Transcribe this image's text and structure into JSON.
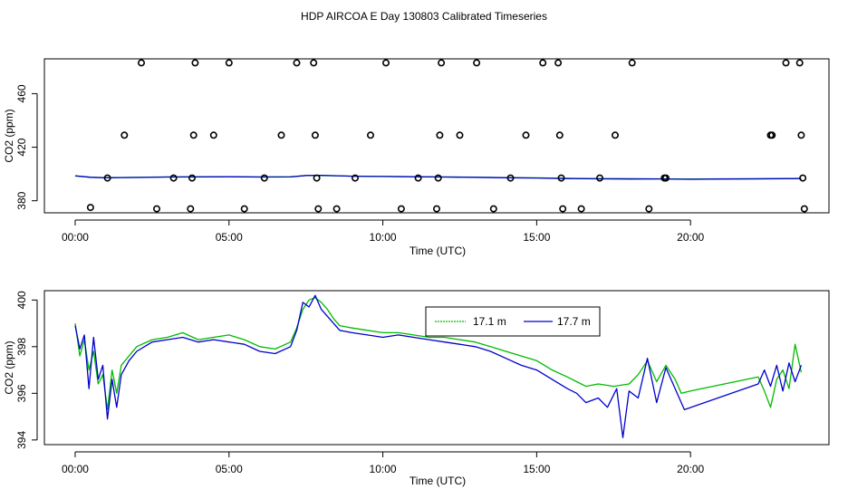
{
  "title": "HDP AIRCOA E  Day 130803  Calibrated Timeseries",
  "colors": {
    "green": "#00bb00",
    "blue": "#0000cc"
  },
  "chart_data": [
    {
      "type": "scatter",
      "xlabel": "Time (UTC)",
      "ylabel": "CO2 (ppm)",
      "xlim": [
        -1.0,
        24.5
      ],
      "ylim": [
        371,
        486
      ],
      "xticks": [
        0,
        5,
        10,
        15,
        20
      ],
      "xtick_labels": [
        "00:00",
        "05:00",
        "10:00",
        "15:00",
        "20:00"
      ],
      "yticks": [
        380,
        420,
        460
      ],
      "ytick_labels": [
        "380",
        "420",
        "460"
      ],
      "calibration_points": {
        "x": [
          0.5,
          1.05,
          1.6,
          2.15,
          2.65,
          3.2,
          3.75,
          3.8,
          3.85,
          3.9,
          4.5,
          5.0,
          5.5,
          6.15,
          6.7,
          7.2,
          7.75,
          7.8,
          7.85,
          7.9,
          8.5,
          9.1,
          9.6,
          10.1,
          10.6,
          11.15,
          11.75,
          11.8,
          11.85,
          11.9,
          12.5,
          13.05,
          13.6,
          14.15,
          14.65,
          15.2,
          15.7,
          15.75,
          15.8,
          15.85,
          16.45,
          17.05,
          17.55,
          18.1,
          18.65,
          19.15,
          19.2,
          22.6,
          22.65,
          23.1,
          23.55,
          23.6,
          23.65,
          23.7
        ],
        "y": [
          375,
          397,
          429,
          483,
          374,
          397,
          374,
          397,
          429,
          483,
          429,
          483,
          374,
          397,
          429,
          483,
          483,
          429,
          397,
          374,
          374,
          397,
          429,
          483,
          374,
          397,
          374,
          397,
          429,
          483,
          429,
          483,
          374,
          397,
          429,
          483,
          483,
          429,
          397,
          374,
          374,
          397,
          429,
          483,
          374,
          397,
          397,
          429,
          429,
          483,
          483,
          429,
          397,
          374
        ]
      },
      "series": [
        {
          "color": "green",
          "x": [
            0,
            0.5,
            1,
            1.5,
            2,
            3,
            4,
            5,
            6,
            7,
            7.5,
            8,
            9,
            10,
            11,
            12,
            13,
            14,
            15,
            16,
            17,
            18,
            19,
            20,
            21,
            22,
            23,
            23.6
          ],
          "y": [
            398.5,
            397.6,
            397.3,
            397.4,
            397.5,
            397.8,
            397.9,
            398.0,
            397.8,
            397.9,
            398.8,
            398.9,
            398.4,
            398.2,
            398.0,
            397.8,
            397.6,
            397.3,
            397.1,
            396.8,
            396.6,
            396.5,
            396.4,
            396.3,
            396.4,
            396.5,
            396.6,
            396.7
          ]
        },
        {
          "color": "blue",
          "x": [
            0,
            0.5,
            1,
            1.5,
            2,
            3,
            4,
            5,
            6,
            7,
            7.5,
            8,
            9,
            10,
            11,
            12,
            13,
            14,
            15,
            16,
            17,
            18,
            19,
            20,
            21,
            22,
            23,
            23.6
          ],
          "y": [
            398.7,
            397.5,
            397.1,
            397.3,
            397.4,
            397.7,
            397.8,
            397.9,
            397.7,
            397.8,
            398.9,
            399.0,
            398.3,
            398.1,
            397.9,
            397.7,
            397.5,
            397.2,
            397.0,
            396.6,
            396.4,
            396.2,
            396.3,
            396.0,
            396.2,
            396.3,
            396.5,
            396.6
          ]
        }
      ]
    },
    {
      "type": "line",
      "xlabel": "Time (UTC)",
      "ylabel": "CO2 (ppm)",
      "xlim": [
        -1.0,
        24.5
      ],
      "ylim": [
        393.8,
        400.4
      ],
      "xticks": [
        0,
        5,
        10,
        15,
        20
      ],
      "xtick_labels": [
        "00:00",
        "05:00",
        "10:00",
        "15:00",
        "20:00"
      ],
      "yticks": [
        394,
        396,
        398,
        400
      ],
      "ytick_labels": [
        "394",
        "396",
        "398",
        "400"
      ],
      "legend_position": "top-center",
      "series": [
        {
          "name": "17.1 m",
          "color": "green",
          "x": [
            0,
            0.15,
            0.3,
            0.45,
            0.6,
            0.75,
            0.9,
            1.05,
            1.2,
            1.35,
            1.5,
            1.75,
            2.0,
            2.5,
            3.0,
            3.5,
            4.0,
            4.5,
            5.0,
            5.5,
            6.0,
            6.5,
            7.0,
            7.2,
            7.4,
            7.6,
            7.8,
            8.0,
            8.2,
            8.4,
            8.6,
            9.0,
            9.5,
            10.0,
            10.5,
            11.0,
            11.5,
            12.0,
            12.5,
            13.0,
            13.5,
            14.0,
            14.5,
            15.0,
            15.5,
            16.0,
            16.3,
            16.6,
            17.0,
            17.5,
            18.0,
            18.3,
            18.6,
            18.9,
            19.2,
            19.5,
            19.7,
            20.0,
            22.2,
            22.4,
            22.6,
            22.8,
            23.0,
            23.2,
            23.4,
            23.6
          ],
          "y": [
            399.0,
            397.6,
            398.3,
            397.0,
            397.8,
            396.4,
            396.8,
            395.3,
            397.0,
            396.0,
            397.2,
            397.6,
            398.0,
            398.3,
            398.4,
            398.6,
            398.3,
            398.4,
            398.5,
            398.3,
            398.0,
            397.9,
            398.2,
            398.8,
            399.6,
            400.0,
            400.1,
            399.9,
            399.6,
            399.2,
            398.9,
            398.8,
            398.7,
            398.6,
            398.6,
            398.5,
            398.4,
            398.4,
            398.3,
            398.2,
            398.0,
            397.8,
            397.6,
            397.4,
            397.0,
            396.7,
            396.5,
            396.3,
            396.4,
            396.3,
            396.4,
            396.8,
            397.4,
            396.5,
            397.2,
            396.6,
            396.0,
            396.1,
            396.7,
            396.1,
            395.4,
            396.6,
            397.0,
            396.2,
            398.1,
            396.9
          ]
        },
        {
          "name": "17.7 m",
          "color": "blue",
          "x": [
            0,
            0.15,
            0.3,
            0.45,
            0.6,
            0.75,
            0.9,
            1.05,
            1.2,
            1.35,
            1.5,
            1.75,
            2.0,
            2.5,
            3.0,
            3.5,
            4.0,
            4.5,
            5.0,
            5.5,
            6.0,
            6.5,
            7.0,
            7.2,
            7.4,
            7.6,
            7.8,
            8.0,
            8.2,
            8.4,
            8.6,
            9.0,
            9.5,
            10.0,
            10.5,
            11.0,
            11.5,
            12.0,
            12.5,
            13.0,
            13.5,
            14.0,
            14.5,
            15.0,
            15.5,
            16.0,
            16.3,
            16.6,
            17.0,
            17.3,
            17.6,
            17.8,
            18.0,
            18.3,
            18.6,
            18.9,
            19.2,
            19.5,
            19.8,
            22.2,
            22.4,
            22.6,
            22.8,
            23.0,
            23.2,
            23.4,
            23.6
          ],
          "y": [
            398.9,
            397.9,
            398.5,
            396.2,
            398.4,
            396.6,
            397.2,
            394.9,
            396.6,
            395.4,
            396.8,
            397.4,
            397.8,
            398.2,
            398.3,
            398.4,
            398.2,
            398.3,
            398.2,
            398.1,
            397.8,
            397.7,
            398.0,
            398.7,
            399.9,
            399.7,
            400.2,
            399.6,
            399.3,
            399.0,
            398.7,
            398.6,
            398.5,
            398.4,
            398.5,
            398.4,
            398.3,
            398.2,
            398.1,
            398.0,
            397.8,
            397.5,
            397.2,
            397.0,
            396.6,
            396.2,
            396.0,
            395.6,
            395.8,
            395.4,
            396.2,
            394.1,
            396.1,
            395.8,
            397.5,
            395.6,
            397.1,
            396.2,
            395.3,
            396.4,
            397.0,
            396.3,
            397.2,
            396.1,
            397.3,
            396.5,
            397.2
          ]
        }
      ]
    }
  ]
}
